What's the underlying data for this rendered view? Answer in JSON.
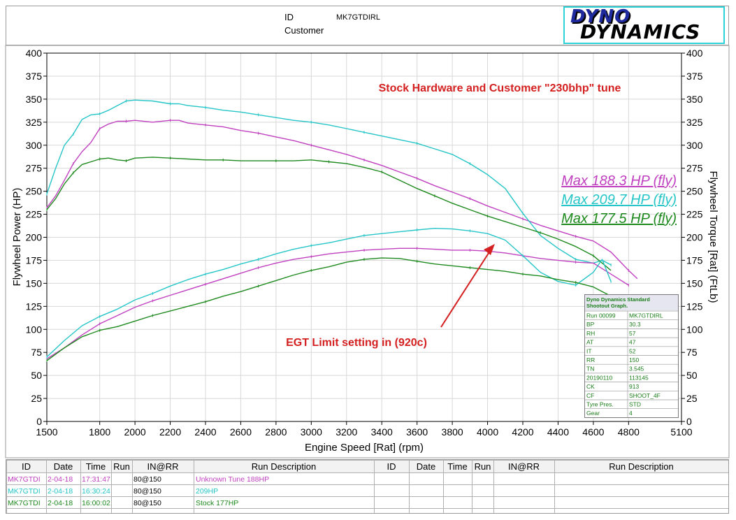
{
  "header": {
    "id_label": "ID",
    "id_value": "MK7GTDIRL",
    "customer_label": "Customer",
    "logo_line1": "DYNO",
    "logo_line2": "DYNAMICS"
  },
  "annotations": {
    "title": "Stock Hardware and Customer \"230bhp\" tune",
    "egt_note": "EGT Limit setting in (920c)"
  },
  "legend_maxima": [
    {
      "text": "Max 188.3 HP (fly)",
      "color": "#c040c0"
    },
    {
      "text": "Max 209.7 HP (fly)",
      "color": "#25c5c8"
    },
    {
      "text": "Max 177.5 HP (fly)",
      "color": "#1e8a1e"
    }
  ],
  "chart_data": {
    "type": "line",
    "xlabel": "Engine Speed [Rat] (rpm)",
    "ylabel": "Flywheel Power (HP)",
    "y2label": "Flywheel Torque [Rat] (FtLb)",
    "xlim": [
      1500,
      5100
    ],
    "ylim": [
      0,
      400
    ],
    "y2lim": [
      0,
      400
    ],
    "x_ticks": [
      1500,
      1800,
      2000,
      2200,
      2400,
      2600,
      2800,
      3000,
      3200,
      3400,
      3600,
      3800,
      4000,
      4200,
      4400,
      4600,
      4800,
      5100
    ],
    "y_ticks": [
      0,
      25,
      50,
      75,
      100,
      125,
      150,
      175,
      200,
      225,
      250,
      275,
      300,
      325,
      350,
      375,
      400
    ],
    "grid": true,
    "series": [
      {
        "name": "Unknown Tune 188HP",
        "quantity": "torque",
        "color": "#c040c0",
        "x": [
          1500,
          1550,
          1600,
          1650,
          1700,
          1750,
          1800,
          1850,
          1900,
          1950,
          2000,
          2100,
          2200,
          2250,
          2300,
          2400,
          2500,
          2600,
          2700,
          2800,
          2900,
          3000,
          3100,
          3200,
          3300,
          3400,
          3500,
          3600,
          3700,
          3800,
          3900,
          4000,
          4100,
          4200,
          4300,
          4400,
          4500,
          4600,
          4700,
          4800,
          4850
        ],
        "y": [
          232,
          245,
          262,
          280,
          293,
          303,
          318,
          323,
          326,
          326,
          327,
          325,
          327,
          327,
          324,
          322,
          320,
          316,
          313,
          309,
          305,
          300,
          295,
          290,
          284,
          278,
          271,
          264,
          256,
          249,
          242,
          234,
          227,
          220,
          213,
          207,
          201,
          196,
          184,
          164,
          155
        ]
      },
      {
        "name": "209HP",
        "quantity": "torque",
        "color": "#25c5c8",
        "x": [
          1500,
          1550,
          1600,
          1650,
          1700,
          1750,
          1800,
          1850,
          1900,
          1950,
          2000,
          2100,
          2200,
          2250,
          2300,
          2400,
          2500,
          2600,
          2700,
          2800,
          2900,
          3000,
          3100,
          3200,
          3300,
          3400,
          3500,
          3600,
          3700,
          3800,
          3900,
          4000,
          4100,
          4200,
          4300,
          4400,
          4500,
          4600,
          4650,
          4700
        ],
        "y": [
          247,
          275,
          300,
          312,
          328,
          333,
          334,
          338,
          343,
          348,
          349,
          348,
          345,
          345,
          343,
          341,
          338,
          336,
          333,
          330,
          327,
          325,
          322,
          318,
          314,
          310,
          306,
          302,
          296,
          290,
          280,
          268,
          253,
          226,
          202,
          188,
          176,
          172,
          175,
          170
        ]
      },
      {
        "name": "Stock 177HP",
        "quantity": "torque",
        "color": "#1e8a1e",
        "x": [
          1500,
          1550,
          1600,
          1650,
          1700,
          1750,
          1800,
          1850,
          1900,
          1950,
          2000,
          2100,
          2200,
          2300,
          2400,
          2500,
          2600,
          2700,
          2800,
          2900,
          3000,
          3100,
          3200,
          3300,
          3400,
          3500,
          3600,
          3700,
          3800,
          3900,
          4000,
          4100,
          4200,
          4300,
          4400,
          4500,
          4600,
          4700
        ],
        "y": [
          230,
          242,
          258,
          270,
          279,
          282,
          285,
          286,
          284,
          283,
          286,
          287,
          286,
          285,
          284,
          284,
          283,
          283,
          283,
          283,
          284,
          282,
          280,
          276,
          271,
          262,
          253,
          245,
          237,
          230,
          223,
          217,
          211,
          205,
          198,
          190,
          180,
          164
        ]
      },
      {
        "name": "Unknown Tune 188HP",
        "quantity": "power",
        "color": "#c040c0",
        "x": [
          1500,
          1600,
          1700,
          1800,
          1900,
          2000,
          2100,
          2200,
          2300,
          2400,
          2500,
          2600,
          2700,
          2800,
          2900,
          3000,
          3100,
          3200,
          3300,
          3400,
          3500,
          3600,
          3700,
          3800,
          3900,
          4000,
          4100,
          4200,
          4300,
          4400,
          4500,
          4600,
          4700,
          4800
        ],
        "y": [
          68,
          80,
          94,
          106,
          115,
          124,
          131,
          137,
          143,
          149,
          155,
          161,
          167,
          172,
          176,
          179,
          182,
          184,
          186,
          187,
          188,
          188,
          187,
          186,
          186,
          185,
          183,
          180,
          177,
          175,
          173,
          172,
          160,
          148
        ]
      },
      {
        "name": "209HP",
        "quantity": "power",
        "color": "#25c5c8",
        "x": [
          1500,
          1600,
          1700,
          1800,
          1900,
          2000,
          2100,
          2200,
          2300,
          2400,
          2500,
          2600,
          2700,
          2800,
          2900,
          3000,
          3100,
          3200,
          3300,
          3400,
          3500,
          3600,
          3700,
          3800,
          3900,
          4000,
          4100,
          4200,
          4300,
          4400,
          4500,
          4600,
          4650,
          4700
        ],
        "y": [
          70,
          88,
          104,
          114,
          122,
          132,
          139,
          147,
          154,
          160,
          165,
          171,
          176,
          182,
          187,
          191,
          194,
          198,
          202,
          204,
          206,
          208,
          209.7,
          209,
          207,
          204,
          197,
          180,
          162,
          152,
          148,
          162,
          176,
          152
        ]
      },
      {
        "name": "Stock 177HP",
        "quantity": "power",
        "color": "#1e8a1e",
        "x": [
          1500,
          1600,
          1700,
          1800,
          1900,
          2000,
          2100,
          2200,
          2300,
          2400,
          2500,
          2600,
          2700,
          2800,
          2900,
          3000,
          3100,
          3200,
          3300,
          3400,
          3500,
          3600,
          3700,
          3800,
          3900,
          4000,
          4100,
          4200,
          4300,
          4400,
          4500,
          4600,
          4700
        ],
        "y": [
          66,
          80,
          92,
          99,
          103,
          109,
          115,
          120,
          125,
          130,
          136,
          141,
          147,
          153,
          159,
          164,
          168,
          173,
          176,
          177.5,
          177,
          174,
          171,
          169,
          167,
          165,
          163,
          160,
          158,
          154,
          151,
          146,
          136
        ]
      }
    ]
  },
  "info_box": {
    "title": "Dyno Dynamics Standard Shootout Graph.",
    "rows": [
      [
        "Run 00099",
        "MK7GTDIRL"
      ],
      [
        "BP",
        "30.3"
      ],
      [
        "RH",
        "57"
      ],
      [
        "AT",
        "47"
      ],
      [
        "IT",
        "52"
      ],
      [
        "RR",
        "150"
      ],
      [
        "TN",
        "3.545"
      ],
      [
        "20190110",
        "113145"
      ],
      [
        "CK",
        "913"
      ],
      [
        "CF",
        "SHOOT_4F"
      ],
      [
        "Tyre Pres.",
        "STD"
      ],
      [
        "Gear",
        "4"
      ]
    ]
  },
  "run_table": {
    "headers_left": [
      "ID",
      "Date",
      "Time",
      "Run",
      "IN@RR",
      "Run Description"
    ],
    "headers_right": [
      "ID",
      "Date",
      "Time",
      "Run",
      "IN@RR",
      "Run Description"
    ],
    "rows": [
      {
        "id": "MK7GTDI",
        "date": "2-04-18",
        "time": "17:31:47",
        "run": "",
        "inrr": "80@150",
        "desc": "Unknown Tune 188HP",
        "color": "#c040c0"
      },
      {
        "id": "MK7GTDI",
        "date": "2-04-18",
        "time": "16:30:24",
        "run": "",
        "inrr": "80@150",
        "desc": "209HP",
        "color": "#25c5c8"
      },
      {
        "id": "MK7GTDI",
        "date": "2-04-18",
        "time": "16:00:02",
        "run": "",
        "inrr": "80@150",
        "desc": "Stock 177HP",
        "color": "#1e8a1e"
      }
    ]
  }
}
